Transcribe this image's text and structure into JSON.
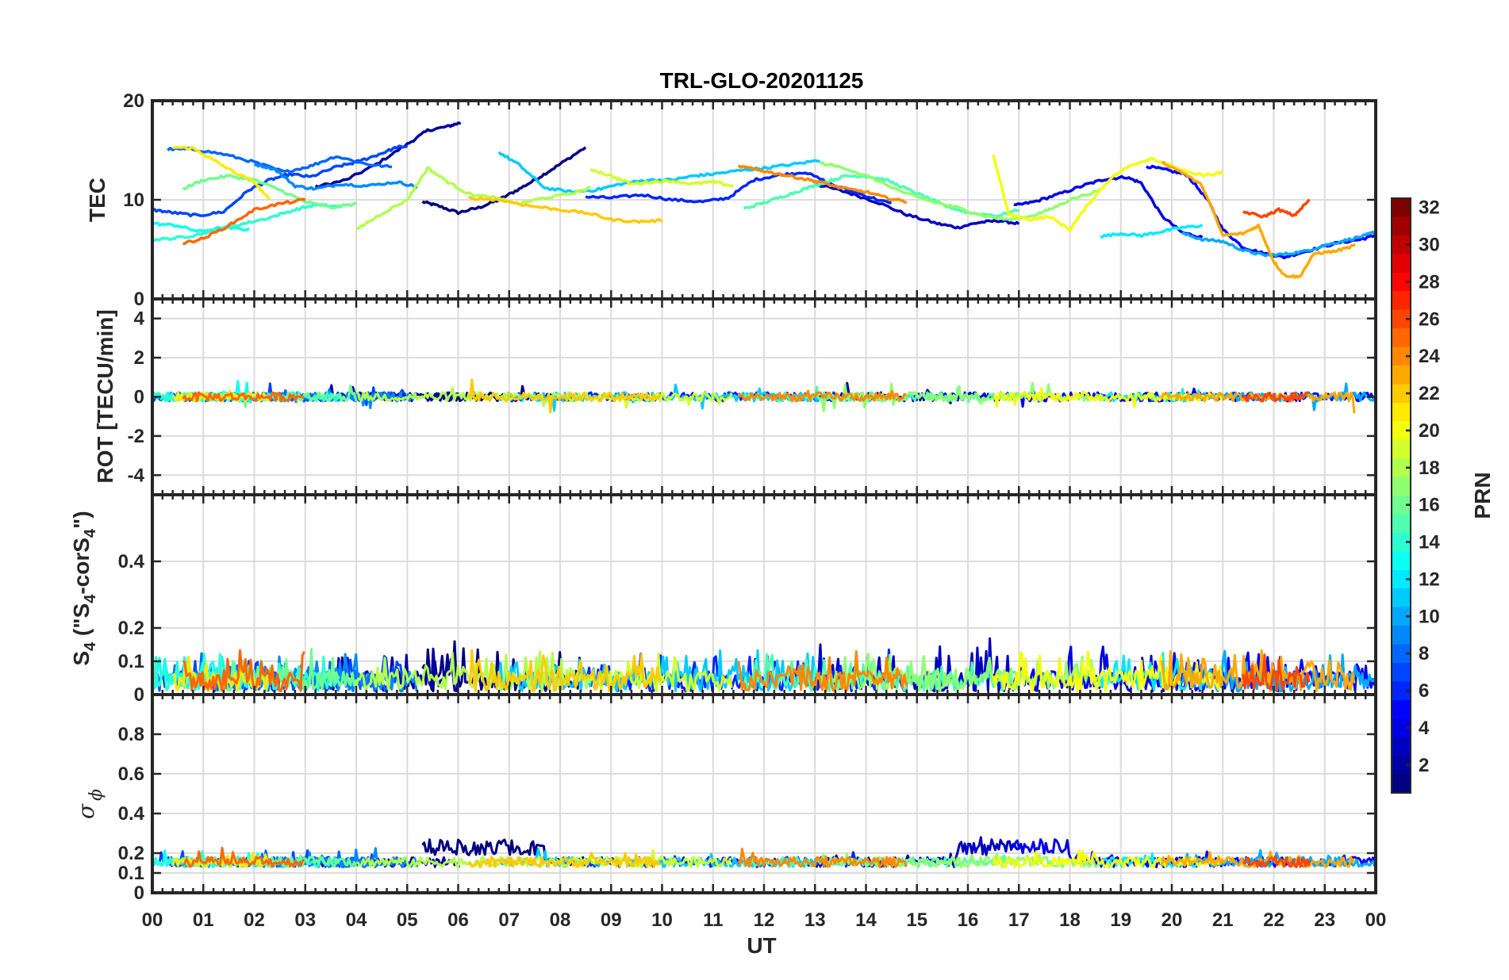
{
  "chart_data": {
    "type": "line",
    "title": "TRL-GLO-20201125",
    "xlabel": "UT",
    "x_tick_labels": [
      "00",
      "01",
      "02",
      "03",
      "04",
      "05",
      "06",
      "07",
      "08",
      "09",
      "10",
      "11",
      "12",
      "13",
      "14",
      "15",
      "16",
      "17",
      "18",
      "19",
      "20",
      "21",
      "22",
      "23",
      "00"
    ],
    "xlim": [
      0,
      24
    ],
    "panels": [
      {
        "name": "tec",
        "ylabel": "TEC",
        "ylim": [
          0,
          20
        ],
        "yticks": [
          0,
          10,
          20
        ],
        "series": [
          {
            "prn": 1,
            "x": [
              5.3,
              5.6,
              6.0,
              6.4,
              6.8,
              7.2,
              7.6,
              8.0,
              8.5
            ],
            "y": [
              9.8,
              9.4,
              8.7,
              9.2,
              10.0,
              11.1,
              12.3,
              13.6,
              15.3
            ]
          },
          {
            "prn": 2,
            "x": [
              3.2,
              3.8,
              4.4,
              5.0,
              5.4,
              5.8,
              6.05
            ],
            "y": [
              11.3,
              12.0,
              13.6,
              15.6,
              17.0,
              17.4,
              17.8
            ]
          },
          {
            "prn": 3,
            "x": [
              13.0,
              13.6,
              14.2,
              14.8,
              15.4,
              15.8,
              16.2,
              16.6,
              17.0
            ],
            "y": [
              11.6,
              10.8,
              9.8,
              8.5,
              7.6,
              7.2,
              7.7,
              7.9,
              7.6
            ]
          },
          {
            "prn": 4,
            "x": [
              16.9,
              17.3,
              17.8,
              18.3,
              18.7,
              19.1,
              19.4,
              19.8,
              20.2,
              20.6
            ],
            "y": [
              9.4,
              9.8,
              10.6,
              11.5,
              12.1,
              12.3,
              11.7,
              8.4,
              6.7,
              6.2
            ]
          },
          {
            "prn": 5,
            "x": [
              19.5,
              19.9,
              20.3,
              20.7,
              21.0,
              21.4,
              21.8,
              22.2,
              22.7,
              23.2,
              23.7,
              24.0
            ],
            "y": [
              13.4,
              13.0,
              12.5,
              10.0,
              7.0,
              5.2,
              4.6,
              4.2,
              4.9,
              5.6,
              6.0,
              6.4
            ]
          },
          {
            "prn": 6,
            "x": [
              8.5,
              9.0,
              9.6,
              10.2,
              10.8,
              11.3,
              11.8,
              12.3,
              12.8,
              13.4,
              14.0,
              14.5
            ],
            "y": [
              10.3,
              10.2,
              10.5,
              10.0,
              9.8,
              10.2,
              12.0,
              12.5,
              12.8,
              11.4,
              10.4,
              9.6
            ]
          },
          {
            "prn": 7,
            "x": [
              0.0,
              0.4,
              0.9,
              1.4,
              1.9,
              2.3,
              2.7,
              3.1,
              3.6,
              4.0,
              4.4,
              4.8,
              5.0
            ],
            "y": [
              9.0,
              8.7,
              8.4,
              8.8,
              11.0,
              12.0,
              12.6,
              12.3,
              13.3,
              13.8,
              14.5,
              15.3,
              15.4
            ]
          },
          {
            "prn": 8,
            "x": [
              0.3,
              0.8,
              1.4,
              2.0,
              2.6,
              3.1,
              3.6,
              4.2,
              4.7
            ],
            "y": [
              15.1,
              15.1,
              14.6,
              13.8,
              12.8,
              13.4,
              14.4,
              13.6,
              13.3
            ]
          },
          {
            "prn": 9,
            "x": [
              2.0,
              2.4,
              2.8,
              3.2,
              3.7,
              4.2,
              4.8,
              5.2
            ],
            "y": [
              13.6,
              13.1,
              11.4,
              11.1,
              11.6,
              11.4,
              11.8,
              11.3
            ]
          },
          {
            "prn": 10,
            "x": [
              20.2,
              20.6,
              21.0,
              21.4,
              21.8,
              22.2,
              22.6,
              23.0,
              23.4,
              23.8,
              24.0
            ],
            "y": [
              6.6,
              6.0,
              5.8,
              4.9,
              4.4,
              4.5,
              4.8,
              5.4,
              5.9,
              6.4,
              6.8
            ]
          },
          {
            "prn": 11,
            "x": [
              6.8,
              7.2,
              7.7,
              8.2,
              8.7,
              9.2,
              9.7,
              10.2,
              10.6,
              11.0,
              11.6,
              12.0,
              12.6,
              13.1
            ],
            "y": [
              14.8,
              13.5,
              11.2,
              10.8,
              11.0,
              11.6,
              12.0,
              12.0,
              12.4,
              12.6,
              13.0,
              13.2,
              13.6,
              14.0
            ]
          },
          {
            "prn": 12,
            "x": [
              18.6,
              19.0,
              19.4,
              19.8,
              20.2,
              20.6
            ],
            "y": [
              6.3,
              6.6,
              6.4,
              6.8,
              7.2,
              7.4
            ]
          },
          {
            "prn": 13,
            "x": [
              0.0,
              0.5,
              0.9,
              1.4,
              1.9
            ],
            "y": [
              7.6,
              7.4,
              6.8,
              7.2,
              7.0
            ]
          },
          {
            "prn": 14,
            "x": [
              0.0,
              0.4,
              0.8,
              1.3,
              1.8,
              2.3,
              2.8,
              3.2,
              3.7
            ],
            "y": [
              6.0,
              6.1,
              6.4,
              7.0,
              7.6,
              8.2,
              9.0,
              9.5,
              9.3
            ]
          },
          {
            "prn": 15,
            "x": [
              11.6,
              12.0,
              12.4,
              12.8,
              13.2,
              13.6,
              14.0,
              14.4,
              14.8,
              15.2,
              15.6,
              16.0,
              16.6,
              17.0
            ],
            "y": [
              9.1,
              9.7,
              10.4,
              11.1,
              11.8,
              12.4,
              12.4,
              12.0,
              11.1,
              10.2,
              9.3,
              8.7,
              8.4,
              9.0
            ]
          },
          {
            "prn": 16,
            "x": [
              0.6,
              1.0,
              1.5,
              2.0,
              2.5,
              3.0,
              3.5,
              4.0
            ],
            "y": [
              11.1,
              12.0,
              12.4,
              12.0,
              11.0,
              9.8,
              9.2,
              9.6
            ]
          },
          {
            "prn": 17,
            "x": [
              13.1,
              13.6,
              14.2,
              14.8,
              15.3,
              15.8,
              16.3,
              16.8,
              17.2,
              17.6,
              18.0,
              18.6
            ],
            "y": [
              13.7,
              13.2,
              12.0,
              10.6,
              9.8,
              9.2,
              8.4,
              8.0,
              8.3,
              9.0,
              10.0,
              11.0
            ]
          },
          {
            "prn": 18,
            "x": [
              4.0,
              4.5,
              5.0,
              5.4,
              5.8,
              6.2,
              6.7,
              7.2,
              7.6,
              8.2,
              8.6
            ],
            "y": [
              7.0,
              8.6,
              10.0,
              13.2,
              11.8,
              10.6,
              10.2,
              9.6,
              10.1,
              10.6,
              11.2
            ]
          },
          {
            "prn": 19,
            "x": [
              8.6,
              9.0,
              9.4,
              9.8,
              10.2,
              10.6,
              11.0,
              11.4
            ],
            "y": [
              13.1,
              12.4,
              11.6,
              11.8,
              11.9,
              11.6,
              11.8,
              11.4
            ]
          },
          {
            "prn": 20,
            "x": [
              16.5,
              16.8,
              17.2,
              17.6,
              18.0,
              18.4,
              18.8,
              19.2,
              19.6,
              20.0,
              20.4,
              20.8,
              21.0
            ],
            "y": [
              14.5,
              8.5,
              8.0,
              8.3,
              7.0,
              9.8,
              12.2,
              13.5,
              14.2,
              13.4,
              12.6,
              12.5,
              12.8
            ]
          },
          {
            "prn": 21,
            "x": [
              0.4,
              0.8,
              1.2,
              1.6,
              2.0,
              2.3
            ],
            "y": [
              15.3,
              15.2,
              14.0,
              12.8,
              11.8,
              10.0
            ]
          },
          {
            "prn": 22,
            "x": [
              6.2,
              6.8,
              7.4,
              8.0,
              8.6,
              9.0,
              9.5,
              10.0
            ],
            "y": [
              10.2,
              10.0,
              9.4,
              9.0,
              8.6,
              8.0,
              7.8,
              7.9
            ]
          },
          {
            "prn": 23,
            "x": [
              19.8,
              20.2,
              20.6,
              21.0,
              21.4,
              21.7,
              22.0,
              22.2,
              22.5,
              22.8,
              23.2,
              23.6
            ],
            "y": [
              13.8,
              12.8,
              11.4,
              6.4,
              6.6,
              7.4,
              3.8,
              2.4,
              2.2,
              4.6,
              4.8,
              5.4
            ]
          },
          {
            "prn": 24,
            "x": [
              11.5,
              11.9,
              12.3,
              12.7,
              13.1,
              13.5,
              14.0,
              14.4,
              14.8
            ],
            "y": [
              13.4,
              13.0,
              12.6,
              12.2,
              11.8,
              11.2,
              10.8,
              10.2,
              9.8
            ]
          },
          {
            "prn": 25,
            "x": [
              0.6,
              1.0,
              1.5,
              2.0,
              2.5,
              3.0
            ],
            "y": [
              5.6,
              6.1,
              7.4,
              9.0,
              9.6,
              10.0
            ]
          },
          {
            "prn": 26,
            "x": [
              21.4,
              21.8,
              22.1,
              22.4,
              22.7
            ],
            "y": [
              8.8,
              8.3,
              9.0,
              8.4,
              10.0
            ]
          }
        ]
      },
      {
        "name": "rot",
        "ylabel": "ROT [TECU/min]",
        "ylim": [
          -5,
          5
        ],
        "yticks": [
          -4,
          -2,
          0,
          2,
          4
        ]
      },
      {
        "name": "s4",
        "ylabel_main": "S",
        "ylabel_sub1": "4",
        "ylabel_mid": " (\"S",
        "ylabel_sub2": "4",
        "ylabel_mid2": "-corS",
        "ylabel_sub3": "4",
        "ylabel_end": "\")",
        "ylim": [
          0,
          0.6
        ],
        "yticks": [
          0,
          0.1,
          0.2,
          0.4
        ],
        "ytick_labels": [
          "0",
          "0.1",
          "0.2",
          "0.4"
        ]
      },
      {
        "name": "sigma",
        "ylabel_main": "σ",
        "ylabel_sub": "ϕ",
        "ylim": [
          0,
          1.0
        ],
        "yticks": [
          0,
          0.1,
          0.2,
          0.4,
          0.6,
          0.8
        ],
        "ytick_labels": [
          "0",
          "0.1",
          "0.2",
          "0.4",
          "0.6",
          "0.8"
        ]
      }
    ],
    "colorbar": {
      "label": "PRN",
      "range": [
        1,
        32
      ],
      "ticks": [
        2,
        4,
        6,
        8,
        10,
        12,
        14,
        16,
        18,
        20,
        22,
        24,
        26,
        28,
        30,
        32
      ]
    }
  }
}
